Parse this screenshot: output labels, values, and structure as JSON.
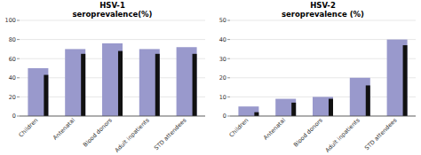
{
  "chart_data": [
    {
      "type": "bar",
      "title": "HSV-1\nseroprevalence(%)",
      "categories": [
        "Children",
        "Antenatal",
        "Blood donors",
        "Adult inpatients",
        "STD attendees"
      ],
      "series": [
        {
          "color": "#9999cc",
          "values": [
            50,
            70,
            76,
            70,
            72
          ]
        },
        {
          "color": "#111111",
          "values": [
            43,
            65,
            68,
            65,
            65
          ]
        }
      ],
      "ylim": [
        0,
        100
      ],
      "yticks": [
        0,
        20,
        40,
        60,
        80,
        100
      ],
      "grid": true
    },
    {
      "type": "bar",
      "title": "HSV-2\nseroprevalence  (%)",
      "categories": [
        "Children",
        "Antenatal",
        "Blood donors",
        "Adult inpatients",
        "STD attendees"
      ],
      "series": [
        {
          "color": "#9999cc",
          "values": [
            5,
            9,
            10,
            20,
            40
          ]
        },
        {
          "color": "#111111",
          "values": [
            2,
            7,
            9,
            16,
            37
          ]
        }
      ],
      "ylim": [
        0,
        50
      ],
      "yticks": [
        0,
        10,
        20,
        30,
        40,
        50
      ],
      "grid": true
    }
  ]
}
